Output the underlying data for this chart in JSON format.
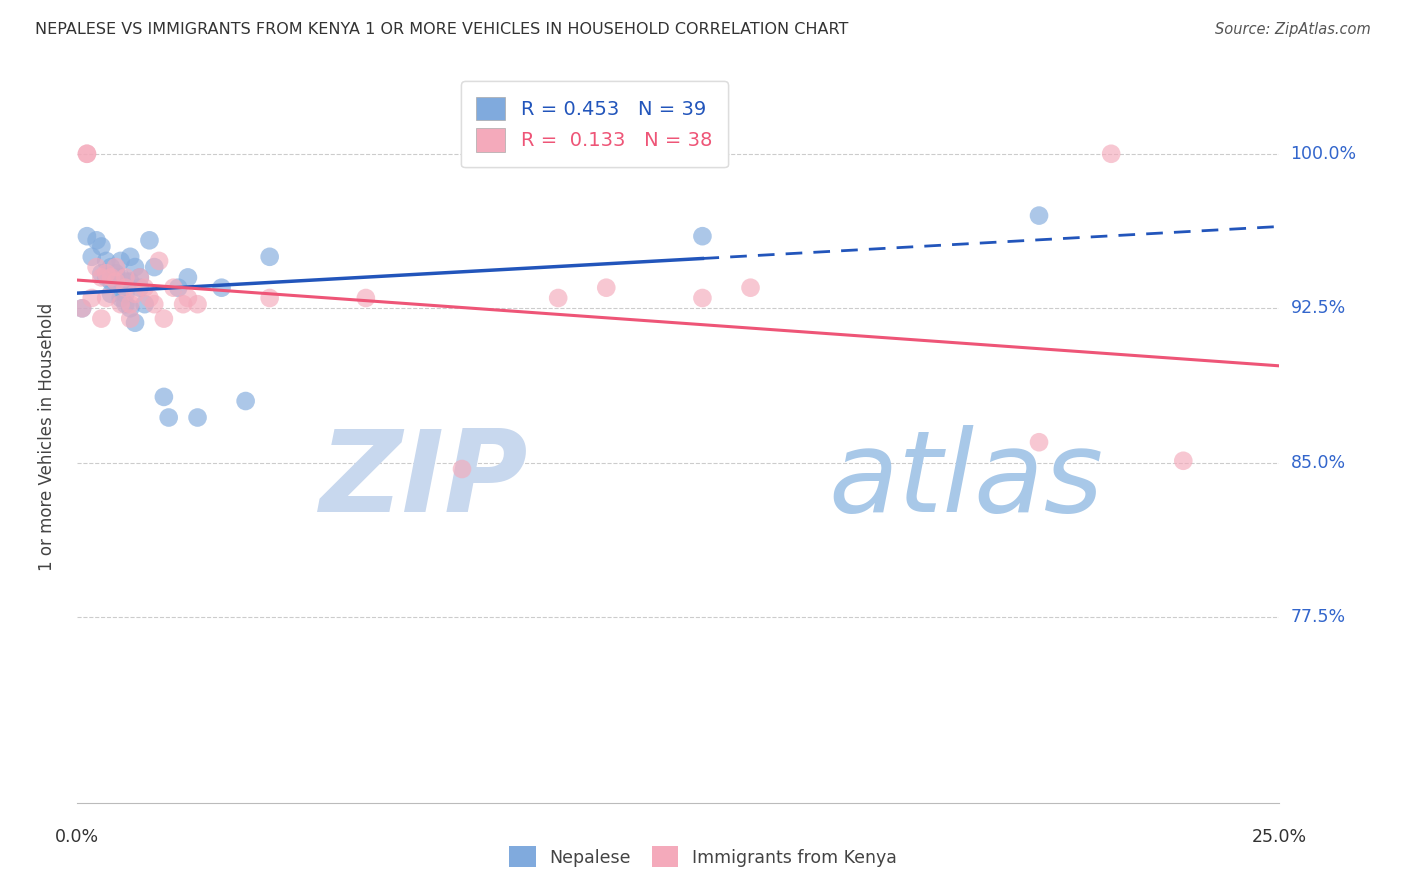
{
  "title": "NEPALESE VS IMMIGRANTS FROM KENYA 1 OR MORE VEHICLES IN HOUSEHOLD CORRELATION CHART",
  "source": "Source: ZipAtlas.com",
  "ylabel": "1 or more Vehicles in Household",
  "ytick_labels": [
    "100.0%",
    "92.5%",
    "85.0%",
    "77.5%"
  ],
  "ytick_values": [
    1.0,
    0.925,
    0.85,
    0.775
  ],
  "xlim": [
    0.0,
    0.25
  ],
  "ylim": [
    0.685,
    1.04
  ],
  "legend_blue_R": "0.453",
  "legend_blue_N": "39",
  "legend_pink_R": "0.133",
  "legend_pink_N": "38",
  "legend_label_blue": "Nepalese",
  "legend_label_pink": "Immigrants from Kenya",
  "blue_color": "#80AADD",
  "pink_color": "#F4AABB",
  "trendline_blue_color": "#2255BB",
  "trendline_pink_color": "#EE5577",
  "watermark_zip_color": "#C8D8EE",
  "watermark_atlas_color": "#A8C8E8",
  "background_color": "#FFFFFF",
  "nepalese_x": [
    0.001,
    0.002,
    0.003,
    0.004,
    0.005,
    0.005,
    0.006,
    0.006,
    0.007,
    0.007,
    0.007,
    0.008,
    0.008,
    0.009,
    0.009,
    0.009,
    0.01,
    0.01,
    0.01,
    0.011,
    0.011,
    0.011,
    0.012,
    0.012,
    0.013,
    0.013,
    0.014,
    0.015,
    0.016,
    0.018,
    0.019,
    0.021,
    0.023,
    0.025,
    0.03,
    0.035,
    0.04,
    0.13,
    0.2
  ],
  "nepalese_y": [
    0.925,
    0.96,
    0.95,
    0.958,
    0.942,
    0.955,
    0.948,
    0.94,
    0.945,
    0.938,
    0.932,
    0.942,
    0.938,
    0.948,
    0.94,
    0.93,
    0.938,
    0.932,
    0.927,
    0.95,
    0.938,
    0.925,
    0.945,
    0.918,
    0.94,
    0.935,
    0.927,
    0.958,
    0.945,
    0.882,
    0.872,
    0.935,
    0.94,
    0.872,
    0.935,
    0.88,
    0.95,
    0.96,
    0.97
  ],
  "kenya_x": [
    0.001,
    0.002,
    0.002,
    0.003,
    0.004,
    0.005,
    0.005,
    0.006,
    0.006,
    0.007,
    0.008,
    0.008,
    0.009,
    0.01,
    0.01,
    0.011,
    0.011,
    0.012,
    0.013,
    0.014,
    0.015,
    0.016,
    0.017,
    0.018,
    0.02,
    0.022,
    0.023,
    0.025,
    0.04,
    0.06,
    0.08,
    0.1,
    0.11,
    0.13,
    0.14,
    0.2,
    0.215,
    0.23
  ],
  "kenya_y": [
    0.925,
    1.0,
    1.0,
    0.93,
    0.945,
    0.94,
    0.92,
    0.942,
    0.93,
    0.94,
    0.938,
    0.945,
    0.927,
    0.94,
    0.935,
    0.927,
    0.92,
    0.932,
    0.94,
    0.935,
    0.93,
    0.927,
    0.948,
    0.92,
    0.935,
    0.927,
    0.93,
    0.927,
    0.93,
    0.93,
    0.847,
    0.93,
    0.935,
    0.93,
    0.935,
    0.86,
    1.0,
    0.851
  ]
}
